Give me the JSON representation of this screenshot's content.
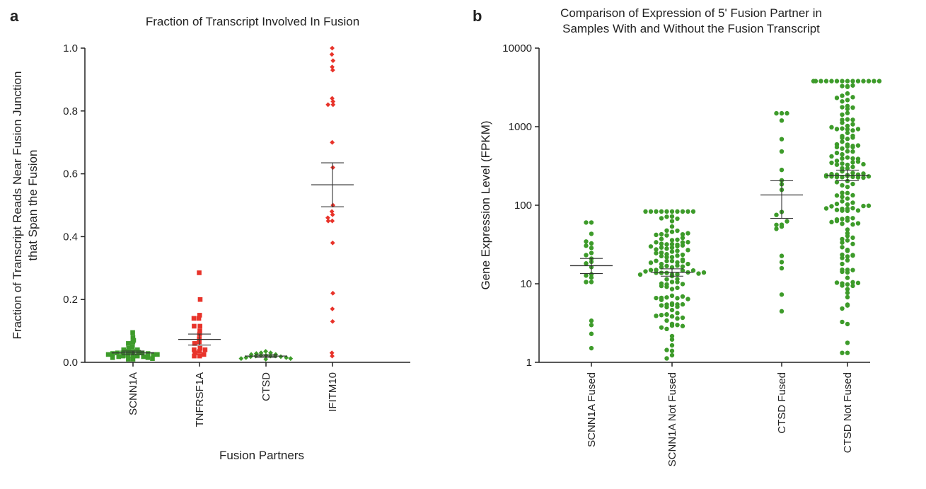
{
  "panel_a_letter": "a",
  "panel_b_letter": "b",
  "chart_data": [
    {
      "type": "scatter",
      "title": "Fraction of Transcript Involved In Fusion",
      "xlabel": "Fusion Partners",
      "ylabel": [
        "Fraction of Transcript Reads Near Fusion Junction",
        "that Span the Fusion"
      ],
      "ylim": [
        0,
        1.0
      ],
      "yscale": "linear",
      "yticks": [
        "0.0",
        "0.2",
        "0.4",
        "0.6",
        "0.8",
        "1.0"
      ],
      "grid": false,
      "categories": [
        "SCNN1A",
        "TNFRSF1A",
        "CTSD",
        "IFITM10"
      ],
      "marker_shapes": [
        "square",
        "square",
        "diamond",
        "diamond"
      ],
      "colors": [
        "#3d9b2a",
        "#e8332a",
        "#3d9b2a",
        "#e8332a"
      ],
      "series": [
        {
          "values": [
            0.095,
            0.08,
            0.07,
            0.065,
            0.06,
            0.05,
            0.045,
            0.04,
            0.04,
            0.035,
            0.035,
            0.032,
            0.03,
            0.03,
            0.03,
            0.028,
            0.028,
            0.025,
            0.025,
            0.025,
            0.022,
            0.022,
            0.02,
            0.02,
            0.018,
            0.018,
            0.015,
            0.015,
            0.012,
            0.01,
            0.01
          ],
          "mean": 0.03,
          "sem_low": 0.024,
          "sem_high": 0.036
        },
        {
          "values": [
            0.285,
            0.2,
            0.15,
            0.14,
            0.14,
            0.115,
            0.115,
            0.1,
            0.09,
            0.075,
            0.065,
            0.06,
            0.045,
            0.04,
            0.04,
            0.035,
            0.03,
            0.025,
            0.02,
            0.02
          ],
          "mean": 0.073,
          "sem_low": 0.055,
          "sem_high": 0.09
        },
        {
          "values": [
            0.035,
            0.03,
            0.03,
            0.028,
            0.025,
            0.025,
            0.022,
            0.022,
            0.02,
            0.02,
            0.02,
            0.018,
            0.018,
            0.015,
            0.015,
            0.012,
            0.012,
            0.01
          ],
          "mean": 0.02,
          "sem_low": 0.016,
          "sem_high": 0.024
        },
        {
          "values": [
            1.0,
            0.98,
            0.96,
            0.94,
            0.93,
            0.84,
            0.83,
            0.82,
            0.82,
            0.7,
            0.62,
            0.5,
            0.48,
            0.47,
            0.46,
            0.45,
            0.45,
            0.38,
            0.22,
            0.17,
            0.13,
            0.03,
            0.02
          ],
          "mean": 0.565,
          "sem_low": 0.495,
          "sem_high": 0.635
        }
      ]
    },
    {
      "type": "scatter",
      "title": [
        "Comparison of Expression of 5' Fusion Partner in",
        "Samples With and Without the Fusion Transcript"
      ],
      "xlabel": "",
      "ylabel": "Gene Expression Level (FPKM)",
      "ylim": [
        1,
        10000
      ],
      "yscale": "log",
      "yticks": [
        "1",
        "10",
        "100",
        "1000",
        "10000"
      ],
      "grid": false,
      "categories": [
        "SCNN1A Fused",
        "SCNN1A Not Fused",
        "CTSD Fused",
        "CTSD Not Fused"
      ],
      "colors": [
        "#3d9b2a",
        "#3d9b2a",
        "#3d9b2a",
        "#3d9b2a"
      ],
      "series": [
        {
          "n": 20,
          "logmin": 0.18,
          "logmax": 1.78,
          "mean": 17,
          "sem_low": 13.5,
          "sem_high": 21
        },
        {
          "n": 130,
          "logmin": 0.05,
          "logmax": 1.92,
          "mean": 14,
          "sem_low": 12.5,
          "sem_high": 15.5
        },
        {
          "n": 20,
          "logmin": 0.65,
          "logmax": 3.17,
          "mean": 135,
          "sem_low": 68,
          "sem_high": 205
        },
        {
          "n": 170,
          "logmin": 0.12,
          "logmax": 3.58,
          "mean": 240,
          "sem_low": 205,
          "sem_high": 280
        }
      ]
    }
  ]
}
